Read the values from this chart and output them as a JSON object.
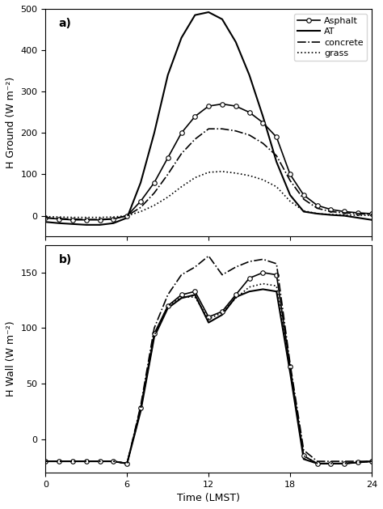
{
  "panel_a": {
    "label": "a)",
    "ylabel": "H Ground (W m⁻²)",
    "ylim": [
      -50,
      500
    ],
    "yticks": [
      0,
      100,
      200,
      300,
      400,
      500
    ],
    "time": [
      0,
      1,
      2,
      3,
      4,
      5,
      6,
      7,
      8,
      9,
      10,
      11,
      12,
      13,
      14,
      15,
      16,
      17,
      18,
      19,
      20,
      21,
      22,
      23,
      24
    ],
    "asphalt": [
      -5,
      -8,
      -10,
      -10,
      -10,
      -8,
      0,
      35,
      80,
      140,
      200,
      240,
      265,
      270,
      265,
      250,
      225,
      190,
      100,
      50,
      25,
      15,
      10,
      7,
      5
    ],
    "AT": [
      -15,
      -18,
      -20,
      -22,
      -22,
      -18,
      -5,
      80,
      200,
      340,
      430,
      485,
      492,
      475,
      420,
      340,
      240,
      130,
      50,
      10,
      5,
      2,
      0,
      -5,
      -10
    ],
    "concrete": [
      -5,
      -7,
      -8,
      -9,
      -9,
      -7,
      0,
      20,
      55,
      100,
      150,
      185,
      210,
      210,
      205,
      195,
      175,
      145,
      85,
      40,
      18,
      10,
      7,
      5,
      3
    ],
    "grass": [
      -2,
      -3,
      -4,
      -4,
      -4,
      -3,
      0,
      10,
      25,
      45,
      70,
      92,
      105,
      107,
      103,
      97,
      87,
      70,
      35,
      12,
      5,
      3,
      2,
      1,
      1
    ]
  },
  "panel_b": {
    "label": "b)",
    "ylabel": "H Wall (W m⁻²)",
    "xlabel": "Time (LMST)",
    "ylim": [
      -30,
      175
    ],
    "yticks": [
      0,
      50,
      100,
      150
    ],
    "time": [
      0,
      1,
      2,
      3,
      4,
      5,
      6,
      7,
      8,
      9,
      10,
      11,
      12,
      13,
      14,
      15,
      16,
      17,
      18,
      19,
      20,
      21,
      22,
      23,
      24
    ],
    "asphalt": [
      -20,
      -20,
      -20,
      -20,
      -20,
      -20,
      -22,
      28,
      95,
      120,
      130,
      133,
      110,
      115,
      130,
      145,
      150,
      148,
      65,
      -15,
      -22,
      -22,
      -22,
      -21,
      -20
    ],
    "AT": [
      -20,
      -20,
      -20,
      -20,
      -20,
      -20,
      -22,
      25,
      92,
      118,
      127,
      130,
      105,
      112,
      128,
      133,
      135,
      133,
      60,
      -18,
      -22,
      -22,
      -22,
      -21,
      -20
    ],
    "concrete": [
      -20,
      -20,
      -20,
      -20,
      -20,
      -20,
      -22,
      30,
      100,
      130,
      148,
      155,
      165,
      148,
      155,
      160,
      162,
      158,
      68,
      -10,
      -20,
      -20,
      -20,
      -20,
      -20
    ],
    "grass": [
      -20,
      -20,
      -20,
      -20,
      -20,
      -20,
      -22,
      26,
      93,
      120,
      128,
      128,
      108,
      114,
      127,
      137,
      140,
      138,
      62,
      -15,
      -22,
      -22,
      -22,
      -21,
      -20
    ]
  },
  "xticks": [
    0,
    6,
    12,
    18,
    24
  ],
  "legend_labels": [
    "Asphalt",
    "AT",
    "concrete",
    "grass"
  ],
  "bg_color": "#ffffff",
  "line_color": "#000000"
}
